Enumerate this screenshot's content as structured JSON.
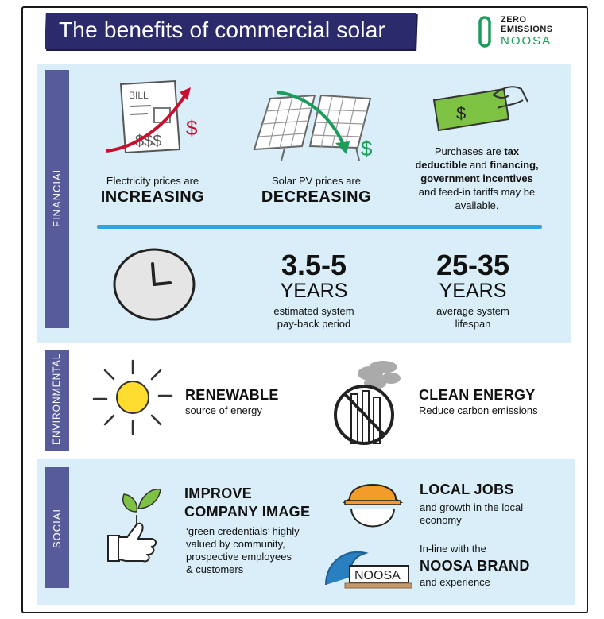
{
  "header": {
    "title": "The benefits of commercial solar",
    "logo_line1": "ZERO",
    "logo_line2": "EMISSIONS",
    "logo_line3": "NOOSA"
  },
  "sections": {
    "financial": "FINANCIAL",
    "environmental": "ENVIRONMENTAL",
    "social": "SOCIAL"
  },
  "financial": {
    "bill_label": "BILL",
    "electricity_text": "Electricity prices are",
    "electricity_emph": "INCREASING",
    "solar_text": "Solar PV prices are",
    "solar_emph": "DECREASING",
    "purchases_pre": "Purchases are ",
    "purchases_b1": "tax deductible",
    "purchases_mid": " and ",
    "purchases_b2": "financing, government incentives",
    "purchases_post": " and feed-in tariffs may be available.",
    "payback_value": "3.5-5",
    "payback_unit": "YEARS",
    "payback_desc_1": "estimated system",
    "payback_desc_2": "pay-back period",
    "lifespan_value": "25-35",
    "lifespan_unit": "YEARS",
    "lifespan_desc_1": "average system",
    "lifespan_desc_2": "lifespan"
  },
  "environmental": {
    "renewable_head": "RENEWABLE",
    "renewable_sub": "source of energy",
    "clean_head": "CLEAN ENERGY",
    "clean_sub": "Reduce carbon emissions"
  },
  "social": {
    "image_head_1": "IMPROVE",
    "image_head_2": "COMPANY IMAGE",
    "image_desc_1": "‘green credentials’ highly",
    "image_desc_2": "valued by community,",
    "image_desc_3": "prospective employees",
    "image_desc_4": "& customers",
    "jobs_head": "LOCAL JOBS",
    "jobs_desc_1": "and growth in the local",
    "jobs_desc_2": "economy",
    "brand_pre": "In-line with the",
    "brand_head": "NOOSA BRAND",
    "brand_post": "and experience",
    "noosa_sign": "NOOSA"
  },
  "colors": {
    "banner": "#2b2b6b",
    "panel": "#d9eef9",
    "side_tab": "#585b9a",
    "divider": "#2aa6e8",
    "logo_green": "#1c9c5b",
    "up_arrow": "#c8102e",
    "down_arrow": "#1c9c5b"
  }
}
